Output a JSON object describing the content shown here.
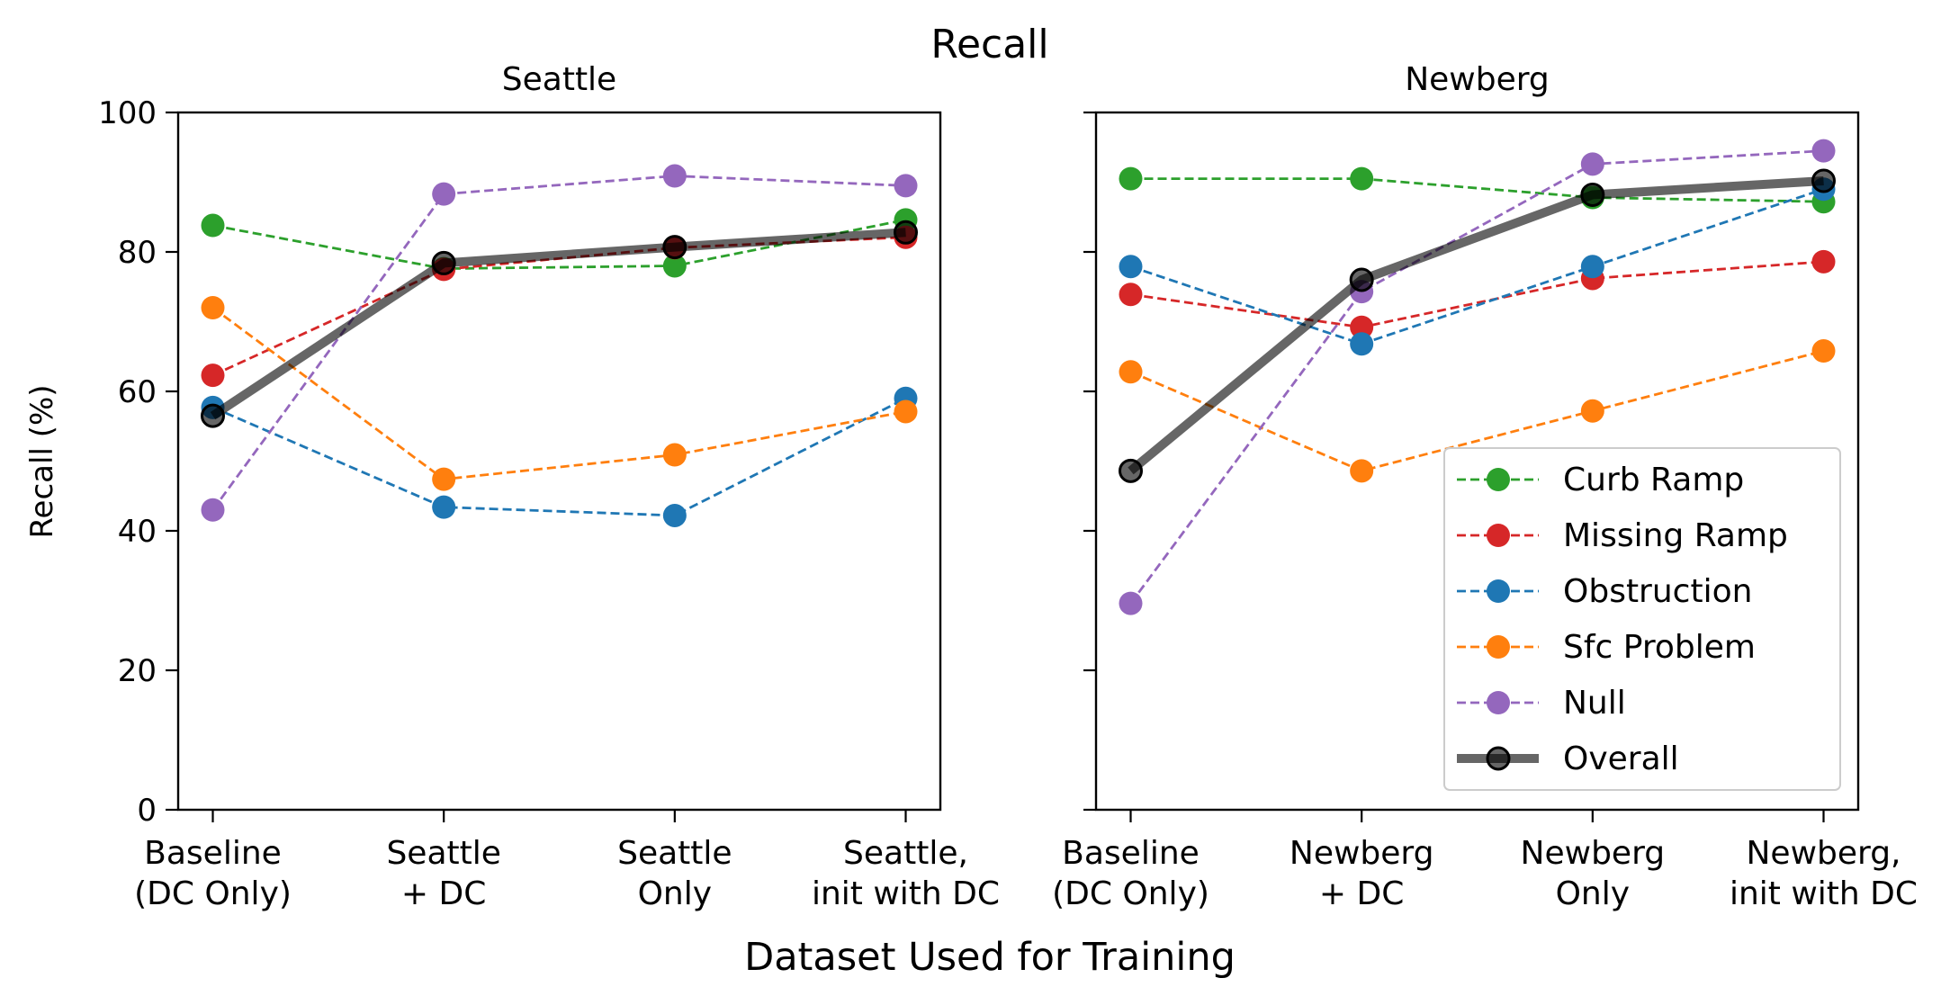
{
  "suptitle": "Recall",
  "xlabel": "Dataset Used for Training",
  "ylabel": "Recall (%)",
  "chart_data": [
    {
      "type": "line",
      "title": "Seattle",
      "categories": [
        [
          "Baseline",
          "(DC Only)"
        ],
        [
          "Seattle",
          "+ DC"
        ],
        [
          "Seattle",
          "Only"
        ],
        [
          "Seattle,",
          "init with DC"
        ]
      ],
      "ylim": [
        0,
        100
      ],
      "yticks": [
        0,
        20,
        40,
        60,
        80,
        100
      ],
      "grid": false,
      "series": [
        {
          "name": "Curb Ramp",
          "color": "#2ca02c",
          "values": [
            83.8,
            77.6,
            78.0,
            84.6
          ]
        },
        {
          "name": "Missing Ramp",
          "color": "#d62728",
          "values": [
            62.3,
            77.5,
            80.6,
            82.1
          ]
        },
        {
          "name": "Obstruction",
          "color": "#1f77b4",
          "values": [
            57.7,
            43.4,
            42.2,
            59.0
          ]
        },
        {
          "name": "Sfc Problem",
          "color": "#ff7f0e",
          "values": [
            72.0,
            47.4,
            50.9,
            57.1
          ]
        },
        {
          "name": "Null",
          "color": "#9467bd",
          "values": [
            43.0,
            88.3,
            90.9,
            89.5
          ]
        },
        {
          "name": "Overall",
          "color": "#000000",
          "values": [
            56.5,
            78.4,
            80.7,
            82.8
          ]
        }
      ]
    },
    {
      "type": "line",
      "title": "Newberg",
      "categories": [
        [
          "Baseline",
          "(DC Only)"
        ],
        [
          "Newberg",
          "+ DC"
        ],
        [
          "Newberg",
          "Only"
        ],
        [
          "Newberg,",
          "init with DC"
        ]
      ],
      "ylim": [
        0,
        100
      ],
      "yticks": [
        0,
        20,
        40,
        60,
        80,
        100
      ],
      "grid": false,
      "legend_position": "lower-right",
      "series": [
        {
          "name": "Curb Ramp",
          "color": "#2ca02c",
          "values": [
            90.5,
            90.5,
            87.8,
            87.2
          ]
        },
        {
          "name": "Missing Ramp",
          "color": "#d62728",
          "values": [
            73.9,
            69.2,
            76.2,
            78.6
          ]
        },
        {
          "name": "Obstruction",
          "color": "#1f77b4",
          "values": [
            77.9,
            66.8,
            77.9,
            89.0
          ]
        },
        {
          "name": "Sfc Problem",
          "color": "#ff7f0e",
          "values": [
            62.8,
            48.6,
            57.2,
            65.8
          ]
        },
        {
          "name": "Null",
          "color": "#9467bd",
          "values": [
            29.6,
            74.3,
            92.6,
            94.5
          ]
        },
        {
          "name": "Overall",
          "color": "#000000",
          "values": [
            48.6,
            76.0,
            88.2,
            90.2
          ]
        }
      ]
    }
  ]
}
